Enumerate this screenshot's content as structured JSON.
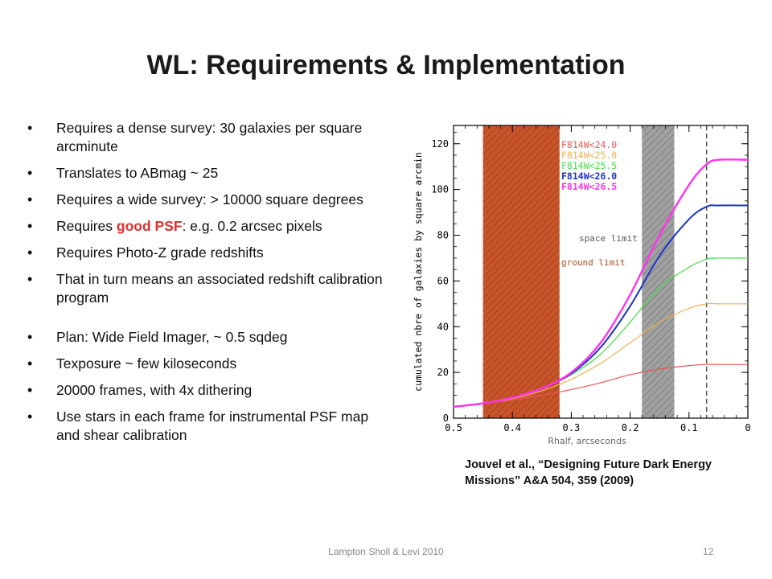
{
  "slide": {
    "title": "WL: Requirements & Implementation",
    "bullets": [
      {
        "text": "Requires a dense survey: 30 galaxies per square arcminute"
      },
      {
        "text": "Translates to ABmag ~ 25"
      },
      {
        "text": "Requires a wide survey: > 10000 square degrees"
      },
      {
        "pre": "Requires ",
        "highlight": "good PSF",
        "post": ":  e.g. 0.2 arcsec pixels"
      },
      {
        "text": "Requires Photo-Z grade redshifts"
      },
      {
        "text": "That in turn means an associated redshift calibration program"
      },
      {
        "text": "Plan: Wide Field Imager, ~ 0.5 sqdeg"
      },
      {
        "text": "Texposure ~ few kiloseconds"
      },
      {
        "text": "20000 frames, with 4x dithering"
      },
      {
        "text": "Use stars in each frame for instrumental PSF map and shear calibration"
      }
    ],
    "caption": "Jouvel  et al.,  “Designing Future Dark Energy Missions” A&A 504, 359 (2009)",
    "footer": "Lampton Sholl & Levi 2010",
    "slide_number": "12"
  },
  "chart_data": {
    "type": "line",
    "xlabel": "Rhalf, arcseconds",
    "ylabel": "cumulated nbre of galaxies by square arcmin",
    "xlim": [
      0.5,
      0
    ],
    "ylim": [
      0,
      128
    ],
    "x_ticks": [
      "0.5",
      "0.4",
      "0.3",
      "0.2",
      "0.1",
      "0"
    ],
    "y_ticks": [
      "0",
      "20",
      "40",
      "60",
      "80",
      "100",
      "120"
    ],
    "bands": [
      {
        "label": "ground limit",
        "x_from": 0.45,
        "x_to": 0.32,
        "color": "#c8552a"
      },
      {
        "label": "space limit",
        "x_from": 0.18,
        "x_to": 0.125,
        "color": "#9a9a9a"
      }
    ],
    "vline_x": 0.07,
    "legend_position": "top-right",
    "series": [
      {
        "name": "F814W<24.0",
        "color": "#ee5555",
        "x": [
          0.5,
          0.45,
          0.4,
          0.35,
          0.3,
          0.25,
          0.2,
          0.15,
          0.1,
          0.07,
          0.05,
          0.0
        ],
        "y": [
          5,
          6.5,
          8,
          10,
          12.5,
          15.5,
          19,
          21.5,
          23,
          23.5,
          23.5,
          23.5
        ]
      },
      {
        "name": "F814W<25.0",
        "color": "#f0b050",
        "x": [
          0.5,
          0.45,
          0.4,
          0.35,
          0.3,
          0.25,
          0.2,
          0.15,
          0.1,
          0.07,
          0.05,
          0.0
        ],
        "y": [
          5,
          6.5,
          8.5,
          12,
          17,
          24,
          33,
          42,
          48,
          50,
          50,
          50
        ]
      },
      {
        "name": "F814W<25.5",
        "color": "#44dd44",
        "x": [
          0.5,
          0.45,
          0.4,
          0.35,
          0.3,
          0.25,
          0.2,
          0.15,
          0.1,
          0.07,
          0.05,
          0.0
        ],
        "y": [
          5,
          6.5,
          9,
          13,
          19,
          28,
          42,
          57,
          66,
          69.5,
          70,
          70
        ]
      },
      {
        "name": "F814W<26.0",
        "color": "#1a33cc",
        "x": [
          0.5,
          0.45,
          0.4,
          0.35,
          0.3,
          0.25,
          0.2,
          0.15,
          0.1,
          0.07,
          0.05,
          0.0
        ],
        "y": [
          5,
          6.5,
          9,
          13,
          19.5,
          31,
          49,
          71,
          87,
          92.5,
          93,
          93
        ]
      },
      {
        "name": "F814W<26.5",
        "color": "#ff33ee",
        "x": [
          0.5,
          0.45,
          0.4,
          0.35,
          0.3,
          0.25,
          0.2,
          0.15,
          0.1,
          0.07,
          0.05,
          0.0
        ],
        "y": [
          5,
          6.5,
          9,
          13,
          20,
          33,
          54,
          80,
          102,
          111,
          113,
          113
        ]
      }
    ]
  }
}
